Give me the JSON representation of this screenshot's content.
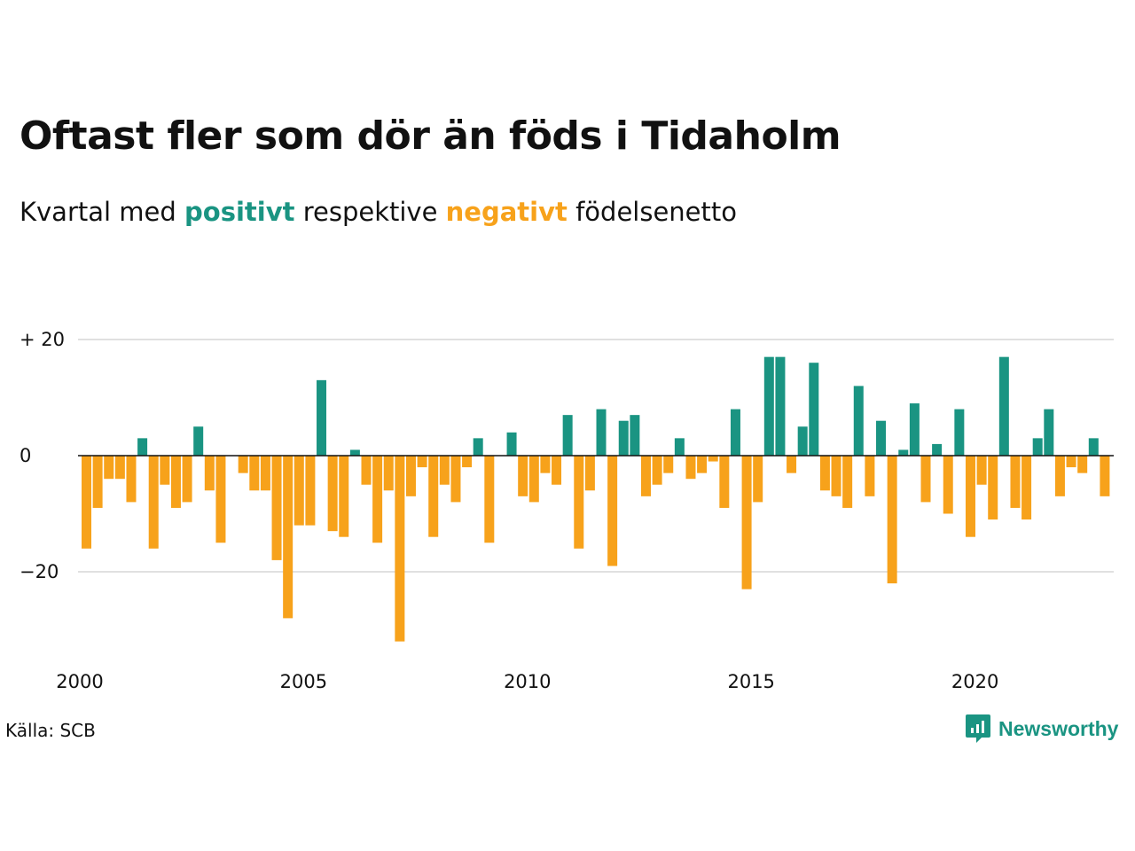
{
  "header": {
    "title": "Oftast fler som dör än föds i Tidaholm",
    "subtitle_pre": "Kvartal med",
    "subtitle_pos": "positivt",
    "subtitle_mid": "respektive",
    "subtitle_neg": "negativt",
    "subtitle_post": "födelsenetto"
  },
  "footer": {
    "source": "Källa: SCB",
    "brand": "Newsworthy"
  },
  "colors": {
    "positive": "#1a9482",
    "negative": "#f7a21b",
    "grid": "#e0e0e0",
    "zero": "#111111"
  },
  "chart_data": {
    "type": "bar",
    "x_start": "2000 Q1",
    "x_tick_labels": [
      "2000",
      "2005",
      "2010",
      "2015",
      "2020"
    ],
    "y_ticks": [
      20,
      0,
      -20
    ],
    "y_tick_labels": [
      "+ 20",
      "0",
      "−20"
    ],
    "ylim": [
      -33,
      20
    ],
    "grid": true,
    "values": [
      -16,
      -9,
      -4,
      -4,
      -8,
      3,
      -16,
      -5,
      -9,
      -8,
      5,
      -6,
      -15,
      0,
      -3,
      -6,
      -6,
      -18,
      -28,
      -12,
      -12,
      13,
      -13,
      -14,
      1,
      -5,
      -15,
      -6,
      -32,
      -7,
      -2,
      -14,
      -5,
      -8,
      -2,
      3,
      -15,
      0,
      4,
      -7,
      -8,
      -3,
      -5,
      7,
      -16,
      -6,
      8,
      -19,
      6,
      7,
      -7,
      -5,
      -3,
      3,
      -4,
      -3,
      -1,
      -9,
      8,
      -23,
      -8,
      17,
      17,
      -3,
      5,
      16,
      -6,
      -7,
      -9,
      12,
      -7,
      6,
      -22,
      1,
      9,
      -8,
      2,
      -10,
      8,
      -14,
      -5,
      -11,
      17,
      -9,
      -11,
      3,
      8,
      -7,
      -2,
      -3,
      3,
      -7
    ]
  }
}
